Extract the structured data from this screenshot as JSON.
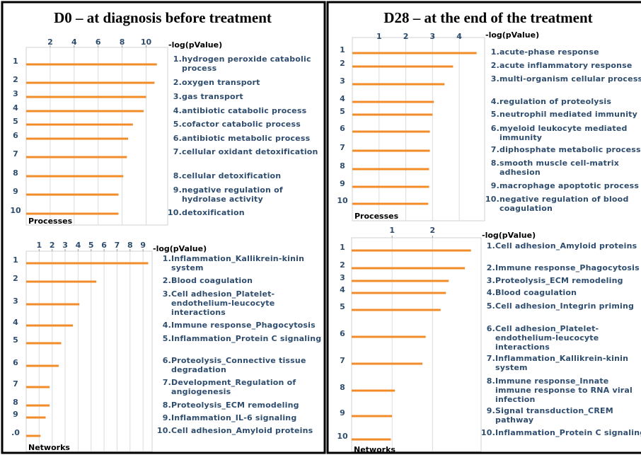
{
  "chart_data": [
    {
      "type": "bar",
      "orientation": "horizontal",
      "title": "D0 – at diagnosis before treatment",
      "panel_label": "Processes",
      "xlabel": "-log(pValue)",
      "categories": [
        "1",
        "2",
        "3",
        "4",
        "5",
        "6",
        "7",
        "8",
        "9",
        "10"
      ],
      "item_numbers": [
        "1.",
        "2.",
        "3.",
        "4.",
        "5.",
        "6.",
        "7.",
        "8.",
        "9.",
        "10."
      ],
      "item_labels": [
        "hydrogen peroxide catabolic process",
        "oxygen transport",
        "gas transport",
        "antibiotic catabolic process",
        "cofactor catabolic process",
        "antibiotic metabolic process",
        "cellular oxidant detoxification",
        "cellular detoxification",
        "negative regulation of hydrolase activity",
        "detoxification"
      ],
      "values": [
        10.9,
        10.7,
        10.0,
        9.8,
        8.9,
        8.5,
        8.4,
        8.1,
        7.7,
        7.7
      ],
      "color": "#f28c28",
      "xlim": [
        0,
        11.8
      ],
      "xticks": [
        2,
        4,
        6,
        8,
        10
      ],
      "grid": true
    },
    {
      "type": "bar",
      "orientation": "horizontal",
      "panel_label": "Networks",
      "xlabel": "-log(pValue)",
      "categories": [
        "1",
        "2",
        "3",
        "4",
        "5",
        "6",
        "7",
        "8",
        "9",
        ".0"
      ],
      "item_numbers": [
        "1.",
        "2.",
        "3.",
        "4.",
        "5.",
        "6.",
        "7.",
        "8.",
        "9.",
        "10."
      ],
      "item_labels": [
        "Inflammation_Kallikrein-kinin system",
        "Blood coagulation",
        "Cell adhesion_Platelet-endothelium-leucocyte interactions",
        "Immune response_Phagocytosis",
        "Inflammation_Protein C signaling",
        "Proteolysis_Connective tissue degradation",
        "Development_Regulation of angiogenesis",
        "Proteolysis_ECM remodeling",
        "Inflammation_IL-6 signaling",
        "Cell adhesion_Amyloid proteins"
      ],
      "values": [
        9.4,
        5.4,
        4.1,
        3.6,
        2.7,
        2.5,
        1.8,
        1.8,
        1.5,
        1.1
      ],
      "color": "#f28c28",
      "xlim": [
        0,
        9.7
      ],
      "xticks": [
        1,
        2,
        3,
        4,
        5,
        6,
        7,
        8,
        9
      ],
      "grid": true
    },
    {
      "type": "bar",
      "orientation": "horizontal",
      "title": "D28 – at the end of the treatment",
      "panel_label": "Processes",
      "xlabel": "-log(pValue)",
      "categories": [
        "1",
        "2",
        "3",
        "4",
        "5",
        "6",
        "7",
        "8",
        "9",
        "10"
      ],
      "item_numbers": [
        "1.",
        "2.",
        "3.",
        "4.",
        "5.",
        "6.",
        "7.",
        "8.",
        "9.",
        "10."
      ],
      "item_labels": [
        "acute-phase response",
        "acute inflammatory response",
        "multi-organism cellular process",
        "regulation of proteolysis",
        "neutrophil mediated immunity",
        "myeloid leukocyte mediated immunity",
        "diphosphate metabolic process",
        "smooth muscle cell-matrix adhesion",
        "macrophage apoptotic process",
        "negative regulation of blood coagulation"
      ],
      "values": [
        4.65,
        3.77,
        3.45,
        3.05,
        3.0,
        2.9,
        2.9,
        2.87,
        2.87,
        2.84
      ],
      "color": "#f28c28",
      "xlim": [
        0,
        4.95
      ],
      "xticks": [
        1,
        2,
        3,
        4
      ],
      "grid": true
    },
    {
      "type": "bar",
      "orientation": "horizontal",
      "panel_label": "Networks",
      "xlabel": "-log(pValue)",
      "categories": [
        "1",
        "2",
        "3",
        "4",
        "5",
        "6",
        "7",
        "8",
        "9",
        "10"
      ],
      "item_numbers": [
        "1.",
        "2.",
        "3.",
        "4.",
        "5.",
        "6.",
        "7.",
        "8.",
        "9.",
        "10."
      ],
      "item_labels": [
        "Cell adhesion_Amyloid proteins",
        "Immune response_Phagocytosis",
        "Proteolysis_ECM remodeling",
        "Blood coagulation",
        "Cell adhesion_Integrin priming",
        "Cell adhesion_Platelet-endothelium-leucocyte interactions",
        "Inflammation_Kallikrein-kinin system",
        "Immune response_Innate immune response to RNA viral infection",
        "Signal transduction_CREM pathway",
        "Inflammation_Protein C signaling"
      ],
      "values": [
        2.95,
        2.8,
        2.4,
        2.33,
        2.2,
        1.83,
        1.75,
        1.07,
        1.0,
        0.97
      ],
      "color": "#f28c28",
      "xlim": [
        0,
        3.2
      ],
      "xticks": [
        1,
        2
      ],
      "grid": true
    }
  ]
}
